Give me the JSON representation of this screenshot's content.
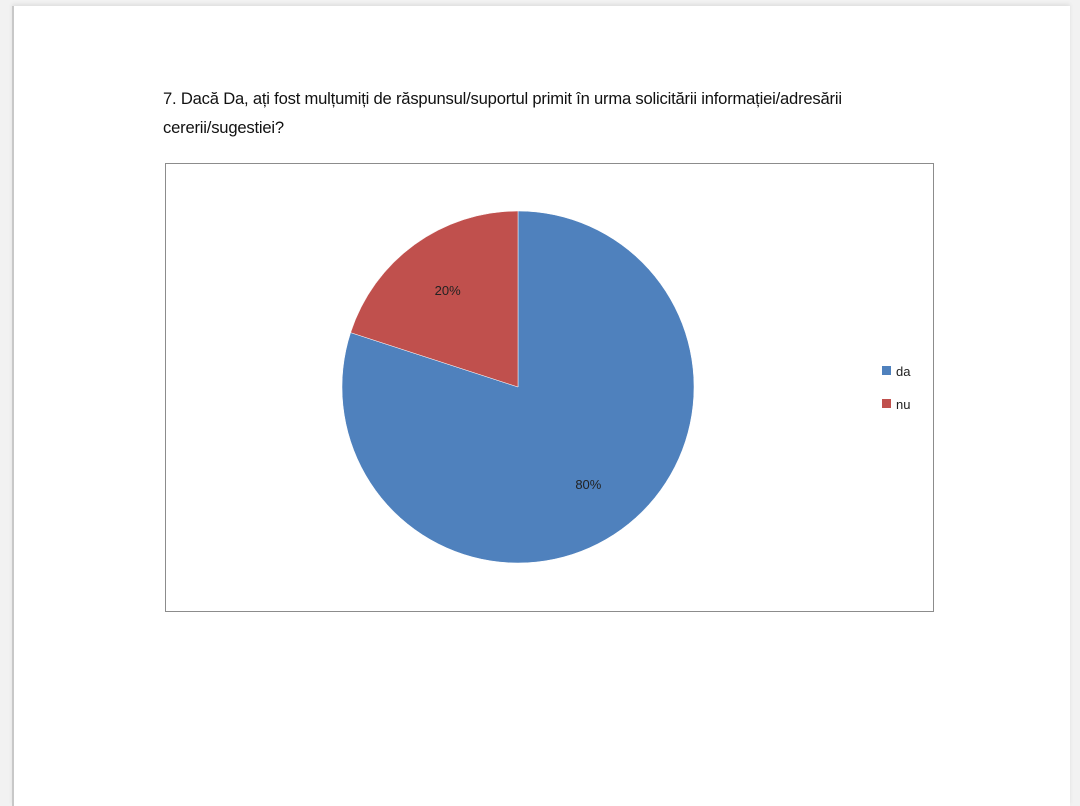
{
  "question": "7. Dacă Da, ați fost mulțumiți de răspunsul/suportul primit în urma solicitării informației/adresării cererii/sugestiei?",
  "chart_data": {
    "type": "pie",
    "title": "",
    "slices": [
      {
        "label": "da",
        "value": 80,
        "data_label": "80%",
        "color": "#4f81bd"
      },
      {
        "label": "nu",
        "value": 20,
        "data_label": "20%",
        "color": "#c0504d"
      }
    ],
    "start_angle": "12 o'clock, clockwise",
    "legend": {
      "placement": "right",
      "entries": [
        "da",
        "nu"
      ]
    }
  }
}
